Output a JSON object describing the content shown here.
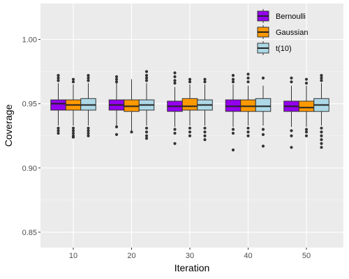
{
  "chart_data": {
    "type": "boxplot",
    "title": "",
    "xlabel": "Iteration",
    "ylabel": "Coverage",
    "ylim": [
      0.838,
      1.028
    ],
    "yticks": [
      "0.85",
      "0.90",
      "0.95",
      "1.00"
    ],
    "ytick_values": [
      0.85,
      0.9,
      0.95,
      1.0
    ],
    "categories": [
      "10",
      "20",
      "30",
      "40",
      "50"
    ],
    "grid": true,
    "legend_position": "top-right",
    "series": [
      {
        "name": "Bernoulli",
        "color": "#9400EE",
        "boxes": [
          {
            "category": "10",
            "q1": 0.945,
            "median": 0.95,
            "q3": 0.953,
            "whisker_low": 0.933,
            "whisker_high": 0.966,
            "outliers": [
              0.968,
              0.97,
              0.972,
              0.931,
              0.929,
              0.927
            ]
          },
          {
            "category": "20",
            "q1": 0.945,
            "median": 0.949,
            "q3": 0.953,
            "whisker_low": 0.933,
            "whisker_high": 0.966,
            "outliers": [
              0.967,
              0.969,
              0.971,
              0.932,
              0.926
            ]
          },
          {
            "category": "30",
            "q1": 0.944,
            "median": 0.948,
            "q3": 0.952,
            "whisker_low": 0.932,
            "whisker_high": 0.963,
            "outliers": [
              0.966,
              0.968,
              0.971,
              0.974,
              0.93,
              0.927,
              0.919
            ]
          },
          {
            "category": "40",
            "q1": 0.944,
            "median": 0.948,
            "q3": 0.953,
            "whisker_low": 0.932,
            "whisker_high": 0.965,
            "outliers": [
              0.967,
              0.969,
              0.972,
              0.93,
              0.927,
              0.914
            ]
          },
          {
            "category": "50",
            "q1": 0.944,
            "median": 0.948,
            "q3": 0.952,
            "whisker_low": 0.932,
            "whisker_high": 0.964,
            "outliers": [
              0.967,
              0.97,
              0.929,
              0.925,
              0.916
            ]
          }
        ]
      },
      {
        "name": "Gaussian",
        "color": "#FF9900",
        "boxes": [
          {
            "category": "10",
            "q1": 0.945,
            "median": 0.949,
            "q3": 0.953,
            "whisker_low": 0.933,
            "whisker_high": 0.965,
            "outliers": [
              0.967,
              0.969,
              0.931,
              0.929,
              0.927,
              0.925,
              0.924
            ]
          },
          {
            "category": "20",
            "q1": 0.944,
            "median": 0.948,
            "q3": 0.953,
            "whisker_low": 0.929,
            "whisker_high": 0.969,
            "outliers": [
              0.928
            ]
          },
          {
            "category": "30",
            "q1": 0.945,
            "median": 0.948,
            "q3": 0.954,
            "whisker_low": 0.933,
            "whisker_high": 0.965,
            "outliers": [
              0.967,
              0.969,
              0.931,
              0.928,
              0.925
            ]
          },
          {
            "category": "40",
            "q1": 0.944,
            "median": 0.948,
            "q3": 0.953,
            "whisker_low": 0.933,
            "whisker_high": 0.964,
            "outliers": [
              0.967,
              0.97,
              0.973,
              0.931,
              0.928,
              0.925
            ]
          },
          {
            "category": "50",
            "q1": 0.944,
            "median": 0.947,
            "q3": 0.952,
            "whisker_low": 0.932,
            "whisker_high": 0.964,
            "outliers": [
              0.966,
              0.969,
              0.93,
              0.928,
              0.925
            ]
          }
        ]
      },
      {
        "name": "t(10)",
        "color": "#ADD8E6",
        "boxes": [
          {
            "category": "10",
            "q1": 0.945,
            "median": 0.949,
            "q3": 0.954,
            "whisker_low": 0.933,
            "whisker_high": 0.966,
            "outliers": [
              0.968,
              0.97,
              0.972,
              0.931,
              0.929,
              0.927,
              0.925
            ]
          },
          {
            "category": "20",
            "q1": 0.945,
            "median": 0.949,
            "q3": 0.953,
            "whisker_low": 0.933,
            "whisker_high": 0.966,
            "outliers": [
              0.968,
              0.97,
              0.972,
              0.975,
              0.931,
              0.928,
              0.925,
              0.923
            ]
          },
          {
            "category": "30",
            "q1": 0.945,
            "median": 0.949,
            "q3": 0.953,
            "whisker_low": 0.933,
            "whisker_high": 0.965,
            "outliers": [
              0.967,
              0.969,
              0.931,
              0.928,
              0.925,
              0.922
            ]
          },
          {
            "category": "40",
            "q1": 0.944,
            "median": 0.948,
            "q3": 0.954,
            "whisker_low": 0.933,
            "whisker_high": 0.964,
            "outliers": [
              0.97,
              0.93,
              0.926,
              0.917
            ]
          },
          {
            "category": "50",
            "q1": 0.944,
            "median": 0.949,
            "q3": 0.954,
            "whisker_low": 0.933,
            "whisker_high": 0.966,
            "outliers": [
              0.968,
              0.97,
              0.972,
              0.931,
              0.928,
              0.925,
              0.922,
              0.919,
              0.916
            ]
          }
        ]
      }
    ]
  }
}
